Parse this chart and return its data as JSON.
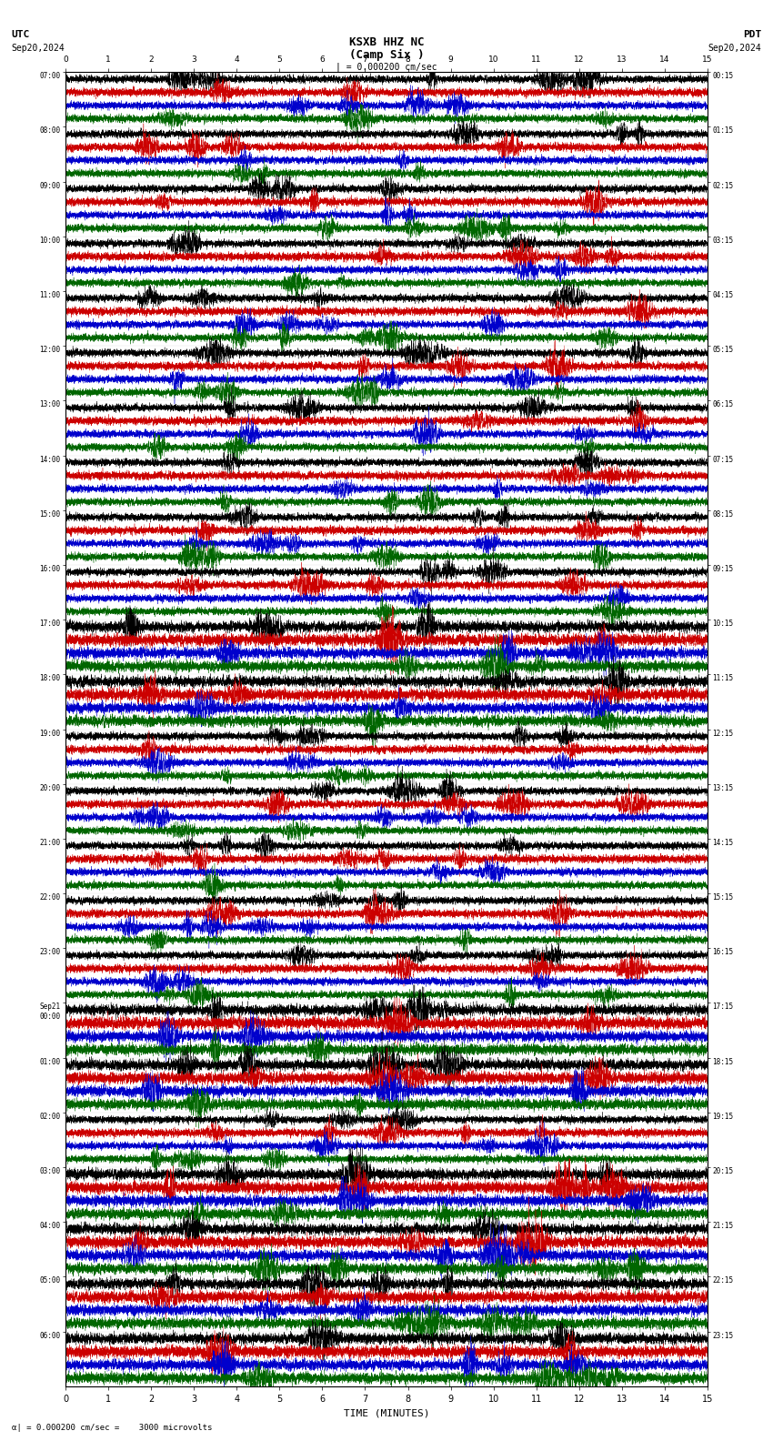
{
  "title_line1": "KSXB HHZ NC",
  "title_line2": "(Camp Six )",
  "scale_text": "= 0.000200 cm/sec",
  "utc_label": "UTC",
  "utc_date": "Sep20,2024",
  "pdt_label": "PDT",
  "pdt_date": "Sep20,2024",
  "xlabel": "TIME (MINUTES)",
  "footer": "= 0.000200 cm/sec =    3000 microvolts",
  "left_times": [
    "07:00",
    "08:00",
    "09:00",
    "10:00",
    "11:00",
    "12:00",
    "13:00",
    "14:00",
    "15:00",
    "16:00",
    "17:00",
    "18:00",
    "19:00",
    "20:00",
    "21:00",
    "22:00",
    "23:00",
    "Sep21\n00:00",
    "01:00",
    "02:00",
    "03:00",
    "04:00",
    "05:00",
    "06:00"
  ],
  "right_times": [
    "00:15",
    "01:15",
    "02:15",
    "03:15",
    "04:15",
    "05:15",
    "06:15",
    "07:15",
    "08:15",
    "09:15",
    "10:15",
    "11:15",
    "12:15",
    "13:15",
    "14:15",
    "15:15",
    "16:15",
    "17:15",
    "18:15",
    "19:15",
    "20:15",
    "21:15",
    "22:15",
    "23:15"
  ],
  "n_rows": 24,
  "n_traces_per_row": 4,
  "trace_colors": [
    "#000000",
    "#cc0000",
    "#0000cc",
    "#006600"
  ],
  "bg_color": "#ffffff",
  "x_min": 0,
  "x_max": 15,
  "x_ticks": [
    0,
    1,
    2,
    3,
    4,
    5,
    6,
    7,
    8,
    9,
    10,
    11,
    12,
    13,
    14,
    15
  ],
  "random_seed": 42
}
